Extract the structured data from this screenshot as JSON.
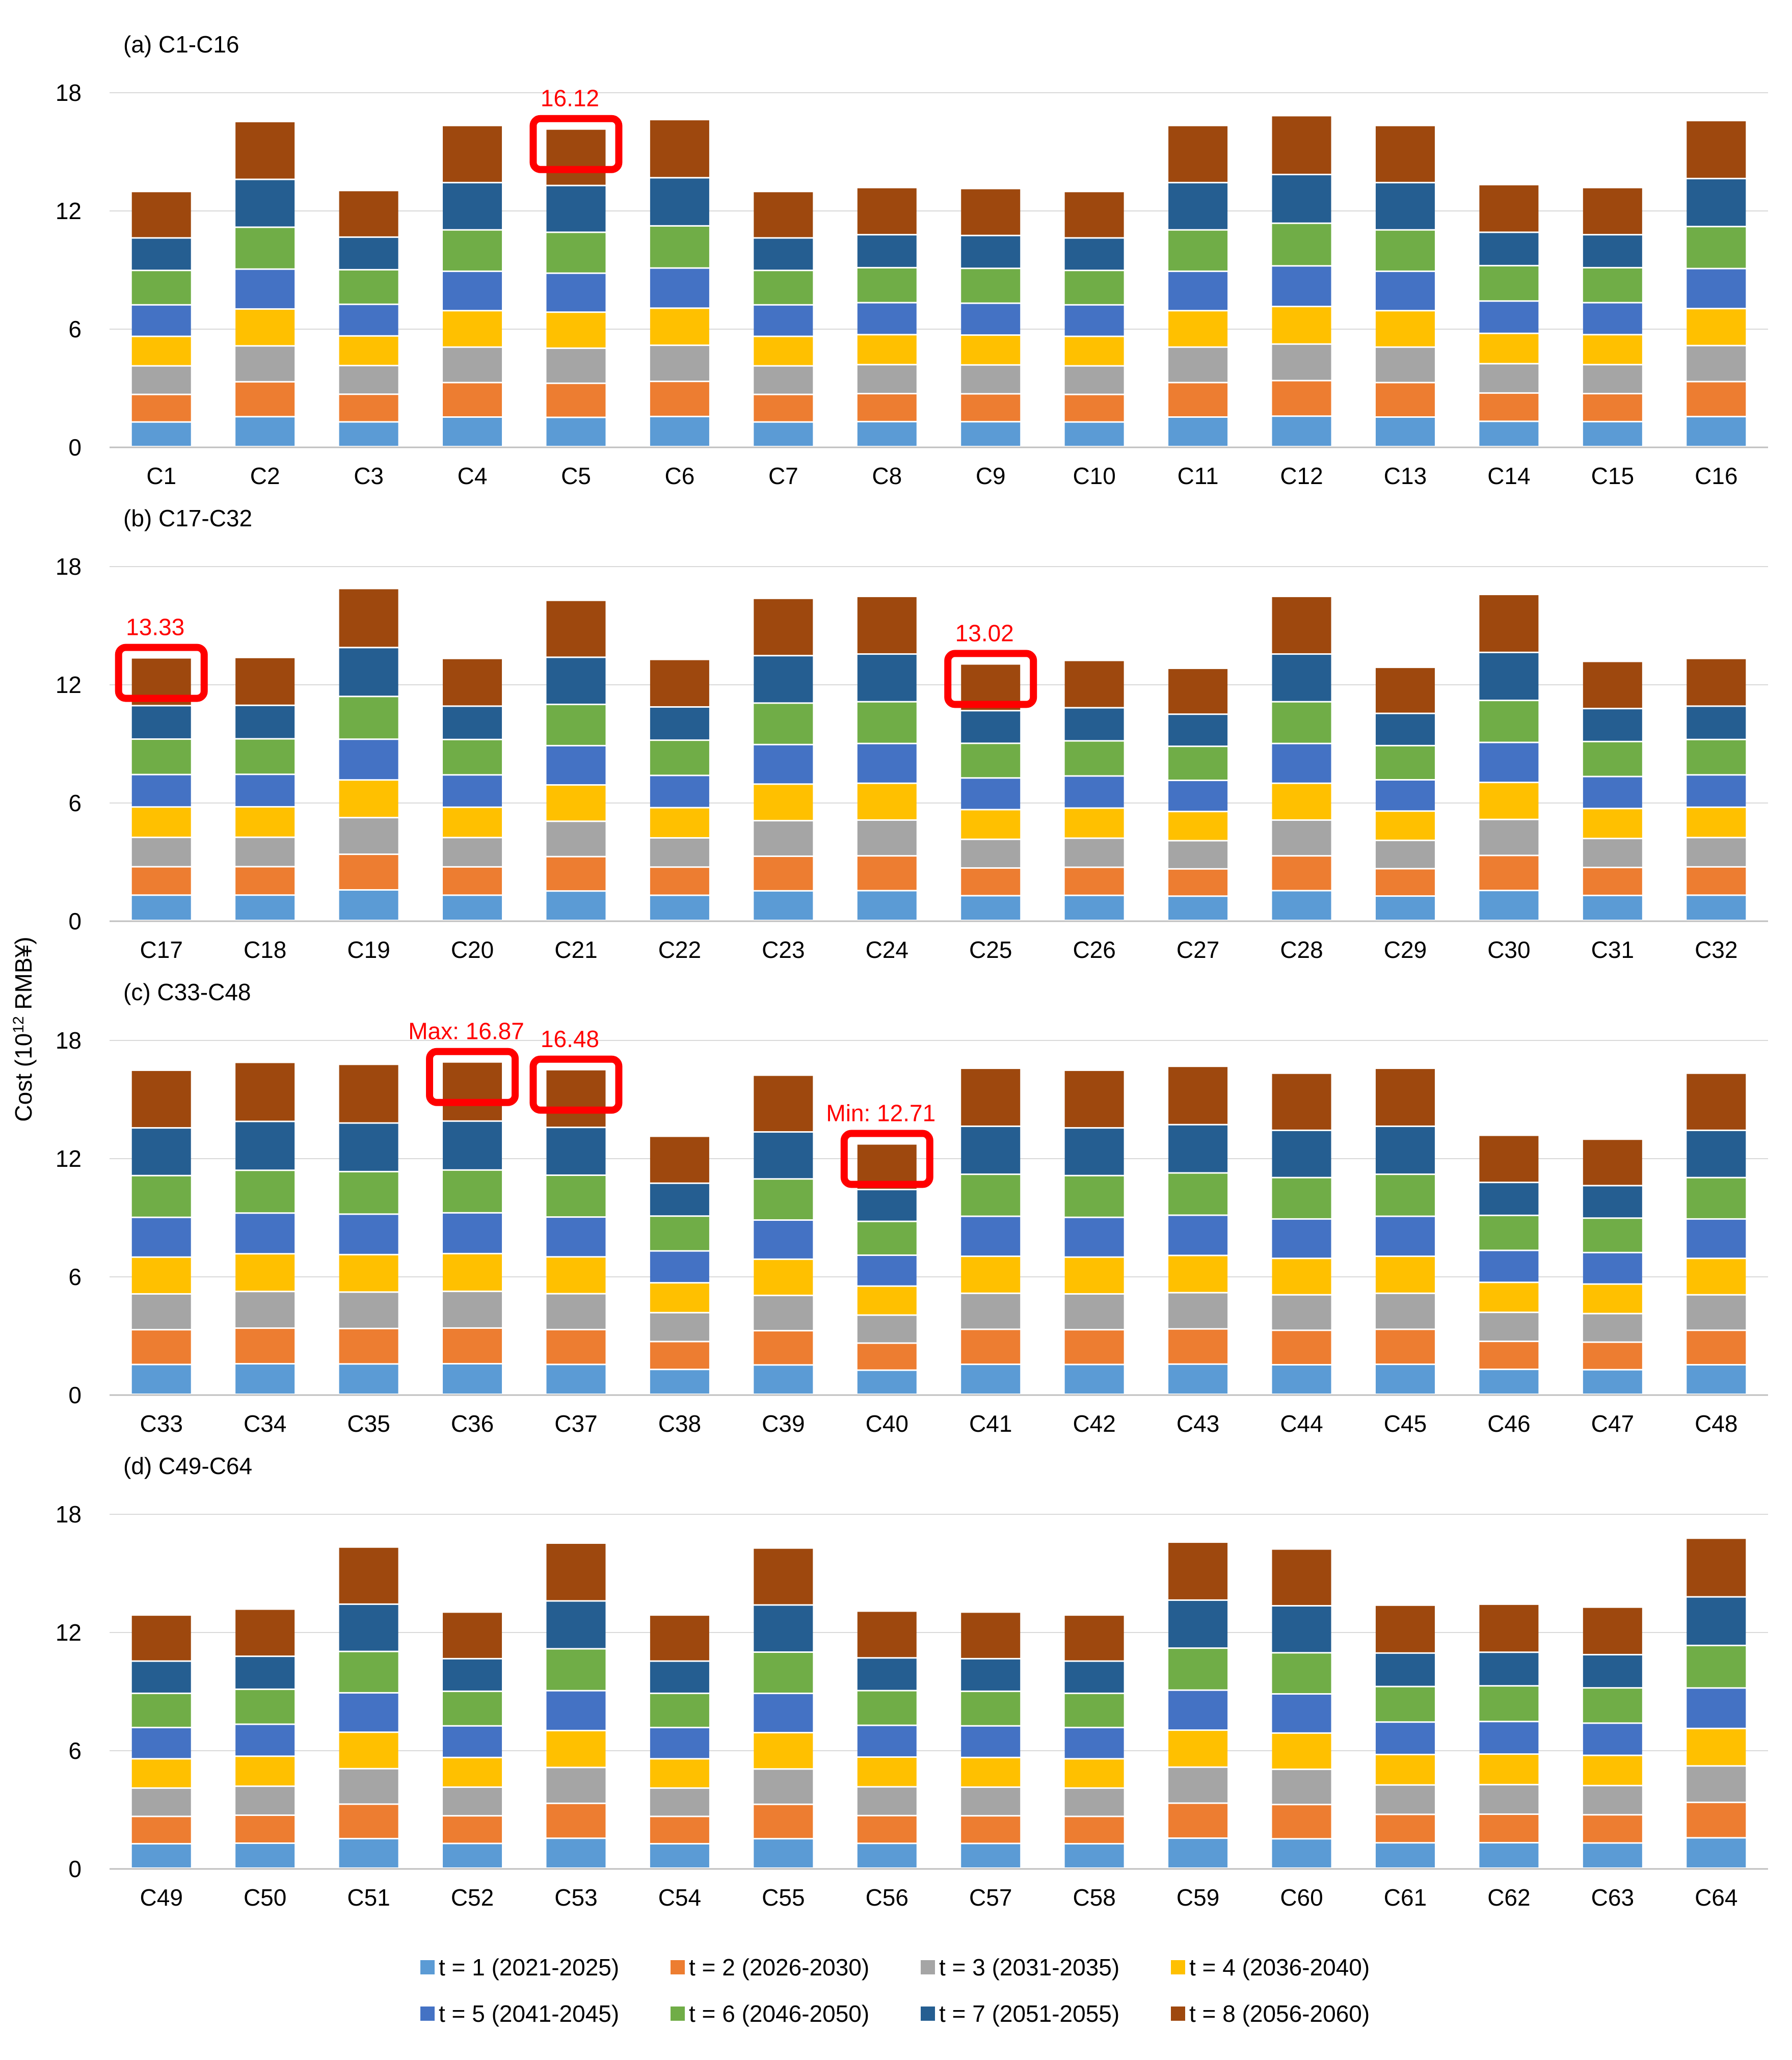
{
  "chart_data": {
    "type": "bar",
    "stacked": true,
    "ylabel": "Cost (10",
    "ylabel_sup": "12",
    "ylabel_suffix": " RMB¥)",
    "ylim": [
      0,
      18
    ],
    "yticks": [
      0,
      6,
      12,
      18
    ],
    "series_names": [
      "t = 1 (2021-2025)",
      "t = 2 (2026-2030)",
      "t = 3 (2031-2035)",
      "t = 4 (2036-2040)",
      "t = 5 (2041-2045)",
      "t = 6 (2046-2050)",
      "t = 7 (2051-2055)",
      "t = 8 (2056-2060)"
    ],
    "colors": [
      "#5B9BD5",
      "#ED7D31",
      "#A5A5A5",
      "#FFC000",
      "#4472C4",
      "#70AD47",
      "#255E91",
      "#9E480E"
    ],
    "profiles": {
      "A": [
        1.25,
        1.4,
        1.45,
        1.5,
        1.6,
        1.75,
        1.65,
        2.36
      ],
      "B": [
        1.5,
        1.75,
        1.8,
        1.85,
        2.0,
        2.1,
        2.4,
        2.9
      ]
    },
    "panels": [
      {
        "title": "(a) C1-C16",
        "categories": [
          "C1",
          "C2",
          "C3",
          "C4",
          "C5",
          "C6",
          "C7",
          "C8",
          "C9",
          "C10",
          "C11",
          "C12",
          "C13",
          "C14",
          "C15",
          "C16"
        ],
        "totals": [
          12.95,
          16.5,
          13.0,
          16.3,
          16.12,
          16.6,
          12.95,
          13.15,
          13.1,
          12.95,
          16.3,
          16.8,
          16.3,
          13.3,
          13.15,
          16.55
        ],
        "profile": [
          "A",
          "B",
          "A",
          "B",
          "B",
          "B",
          "A",
          "A",
          "A",
          "A",
          "B",
          "B",
          "B",
          "A",
          "A",
          "B"
        ],
        "highlights": [
          {
            "index": 4,
            "label": "16.12"
          }
        ]
      },
      {
        "title": "(b) C17-C32",
        "categories": [
          "C17",
          "C18",
          "C19",
          "C20",
          "C21",
          "C22",
          "C23",
          "C24",
          "C25",
          "C26",
          "C27",
          "C28",
          "C29",
          "C30",
          "C31",
          "C32"
        ],
        "totals": [
          13.33,
          13.35,
          16.85,
          13.3,
          16.25,
          13.25,
          16.35,
          16.45,
          13.02,
          13.2,
          12.8,
          16.45,
          12.85,
          16.55,
          13.15,
          13.3
        ],
        "profile": [
          "A",
          "A",
          "B",
          "A",
          "B",
          "A",
          "B",
          "B",
          "A",
          "A",
          "A",
          "B",
          "A",
          "B",
          "A",
          "A"
        ],
        "highlights": [
          {
            "index": 0,
            "label": "13.33"
          },
          {
            "index": 8,
            "label": "13.02"
          }
        ]
      },
      {
        "title": "(c) C33-C48",
        "categories": [
          "C33",
          "C34",
          "C35",
          "C36",
          "C37",
          "C38",
          "C39",
          "C40",
          "C41",
          "C42",
          "C43",
          "C44",
          "C45",
          "C46",
          "C47",
          "C48"
        ],
        "totals": [
          16.45,
          16.85,
          16.75,
          16.87,
          16.48,
          13.1,
          16.2,
          12.71,
          16.55,
          16.45,
          16.65,
          16.3,
          16.55,
          13.15,
          12.95,
          16.3
        ],
        "profile": [
          "B",
          "B",
          "B",
          "B",
          "B",
          "A",
          "B",
          "A",
          "B",
          "B",
          "B",
          "B",
          "B",
          "A",
          "A",
          "B"
        ],
        "highlights": [
          {
            "index": 3,
            "label": "Max: 16.87"
          },
          {
            "index": 4,
            "label": "16.48"
          },
          {
            "index": 7,
            "label": "Min: 12.71"
          }
        ]
      },
      {
        "title": "(d) C49-C64",
        "categories": [
          "C49",
          "C50",
          "C51",
          "C52",
          "C53",
          "C54",
          "C55",
          "C56",
          "C57",
          "C58",
          "C59",
          "C60",
          "C61",
          "C62",
          "C63",
          "C64"
        ],
        "totals": [
          12.85,
          13.15,
          16.3,
          13.0,
          16.5,
          12.85,
          16.25,
          13.05,
          13.0,
          12.85,
          16.55,
          16.2,
          13.35,
          13.4,
          13.25,
          16.75
        ],
        "profile": [
          "A",
          "A",
          "B",
          "A",
          "B",
          "A",
          "B",
          "A",
          "A",
          "A",
          "B",
          "B",
          "A",
          "A",
          "A",
          "B"
        ],
        "highlights": []
      }
    ],
    "legend_position": "bottom"
  }
}
